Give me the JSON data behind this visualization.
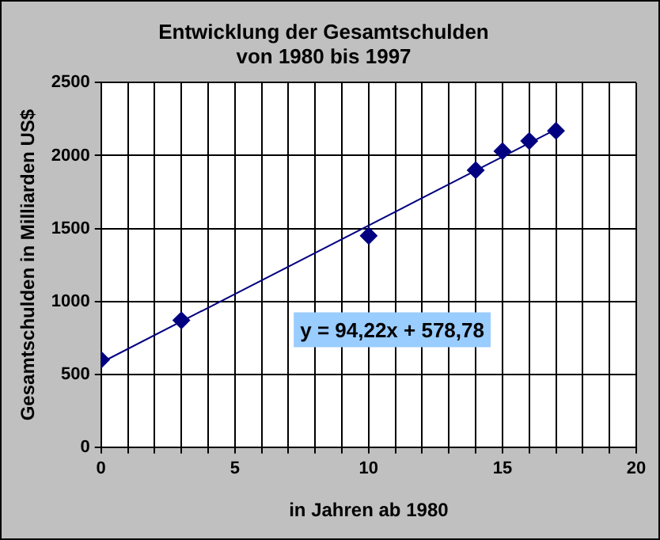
{
  "chart_data": {
    "type": "scatter",
    "title": "Entwicklung der Gesamtschulden\nvon 1980 bis 1997",
    "xlabel": "in Jahren ab 1980",
    "ylabel": "Gesamtschulden in Milliarden US$",
    "series": [
      {
        "type": "scatter",
        "color": "#000080",
        "x": [
          0,
          3,
          10,
          14,
          15,
          16,
          17
        ],
        "values": [
          600,
          870,
          1450,
          1900,
          2030,
          2100,
          2170
        ],
        "marker": "diamond"
      },
      {
        "type": "line",
        "color": "#000080",
        "x": [
          0,
          17
        ],
        "values": [
          580,
          2180
        ],
        "marker": "none",
        "line_style": "solid"
      }
    ],
    "xlim": [
      0,
      20
    ],
    "xticks": [
      0,
      {
        "value": 1,
        "label": null
      },
      {
        "value": 2,
        "label": null
      },
      {
        "value": 3,
        "label": null
      },
      {
        "value": 4,
        "label": null
      },
      5,
      {
        "value": 6,
        "label": null
      },
      {
        "value": 7,
        "label": null
      },
      {
        "value": 8,
        "label": null
      },
      {
        "value": 9,
        "label": null
      },
      10,
      {
        "value": 11,
        "label": null
      },
      {
        "value": 12,
        "label": null
      },
      {
        "value": 13,
        "label": null
      },
      {
        "value": 14,
        "label": null
      },
      15,
      {
        "value": 16,
        "label": null
      },
      {
        "value": 17,
        "label": null
      },
      {
        "value": 18,
        "label": null
      },
      {
        "value": 19,
        "label": null
      },
      20
    ],
    "ylim": [
      0,
      2500
    ],
    "yticks": [
      0,
      500,
      1000,
      1500,
      2000,
      2500
    ],
    "grid": true,
    "legend": false,
    "annotations": [
      "y = 94,22x + 578,78"
    ]
  }
}
